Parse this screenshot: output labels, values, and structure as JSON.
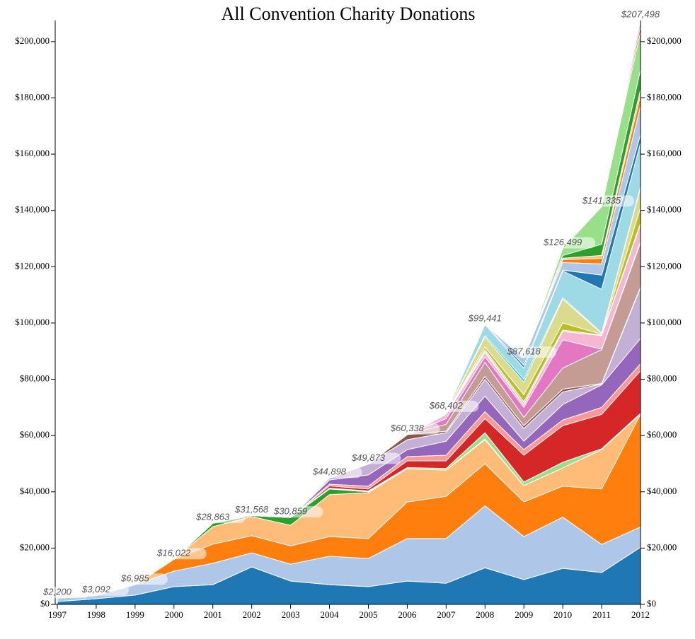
{
  "chart_data": {
    "type": "stacked-area",
    "title": "All Convention Charity Donations",
    "x": [
      1997,
      1998,
      1999,
      2000,
      2001,
      2002,
      2003,
      2004,
      2005,
      2006,
      2007,
      2008,
      2009,
      2010,
      2011,
      2012
    ],
    "xlim": [
      1997,
      2012
    ],
    "xticks": [
      1997,
      1998,
      1999,
      2000,
      2001,
      2002,
      2003,
      2004,
      2005,
      2006,
      2007,
      2008,
      2009,
      2010,
      2011,
      2012
    ],
    "ylim": [
      0,
      207498
    ],
    "yticks": [
      {
        "value": 0,
        "label": "$0"
      },
      {
        "value": 20000,
        "label": "$20,000"
      },
      {
        "value": 40000,
        "label": "$40,000"
      },
      {
        "value": 60000,
        "label": "$60,000"
      },
      {
        "value": 80000,
        "label": "$80,000"
      },
      {
        "value": 100000,
        "label": "$100,000"
      },
      {
        "value": 120000,
        "label": "$120,000"
      },
      {
        "value": 140000,
        "label": "$140,000"
      },
      {
        "value": 160000,
        "label": "$160,000"
      },
      {
        "value": 180000,
        "label": "$180,000"
      },
      {
        "value": 200000,
        "label": "$200,000"
      }
    ],
    "totals": [
      2200,
      3092,
      6985,
      16022,
      28863,
      31568,
      30859,
      44898,
      49873,
      60338,
      68402,
      99441,
      87618,
      126499,
      141335,
      207498
    ],
    "total_labels": [
      "$2,200",
      "$3,092",
      "$6,985",
      "$16,022",
      "$28,863",
      "$31,568",
      "$30,859",
      "$44,898",
      "$49,873",
      "$60,338",
      "$68,402",
      "$99,441",
      "$87,618",
      "$126,499",
      "$141,335",
      "$207,498"
    ],
    "series": [
      {
        "color": "#1f77b4",
        "values": [
          1000,
          2000,
          3300,
          6300,
          7000,
          13300,
          8300,
          7000,
          6300,
          8300,
          7500,
          13000,
          8800,
          12800,
          11300,
          20300
        ]
      },
      {
        "color": "#aec7e8",
        "values": [
          1200,
          1092,
          3685,
          5500,
          7600,
          5000,
          6000,
          10100,
          10000,
          15100,
          15900,
          22000,
          15300,
          18200,
          10000,
          7200
        ]
      },
      {
        "color": "#ff7f0e",
        "values": [
          0,
          0,
          0,
          4222,
          6800,
          6100,
          6500,
          7000,
          7100,
          13000,
          15000,
          15000,
          12300,
          11000,
          19700,
          40000
        ]
      },
      {
        "color": "#ffbb78",
        "values": [
          0,
          0,
          0,
          0,
          6200,
          6800,
          7300,
          14900,
          16300,
          11800,
          9300,
          8500,
          5800,
          6500,
          14000,
          200
        ]
      },
      {
        "color": "#2ca02c",
        "values": [
          0,
          0,
          0,
          0,
          1263,
          368,
          2759,
          2000,
          300,
          0,
          0,
          300,
          0,
          0,
          0,
          0
        ]
      },
      {
        "color": "#98df8a",
        "values": [
          0,
          0,
          0,
          0,
          0,
          0,
          0,
          300,
          300,
          400,
          600,
          2200,
          1300,
          2000,
          300,
          200
        ]
      },
      {
        "color": "#d62728",
        "values": [
          0,
          0,
          0,
          0,
          0,
          0,
          0,
          800,
          700,
          2400,
          2700,
          5000,
          9500,
          13000,
          12200,
          15100
        ]
      },
      {
        "color": "#ff9896",
        "values": [
          0,
          0,
          0,
          0,
          0,
          0,
          0,
          600,
          1000,
          1500,
          2000,
          2500,
          2000,
          2000,
          2500,
          2500
        ]
      },
      {
        "color": "#9467bd",
        "values": [
          0,
          0,
          0,
          0,
          0,
          0,
          0,
          1500,
          4000,
          2500,
          5000,
          5500,
          3000,
          5500,
          8000,
          9000
        ]
      },
      {
        "color": "#c5b0d5",
        "values": [
          0,
          0,
          0,
          0,
          0,
          0,
          0,
          698,
          3873,
          3500,
          3000,
          6000,
          4500,
          4500,
          300,
          18000
        ]
      },
      {
        "color": "#8c564b",
        "values": [
          0,
          0,
          0,
          0,
          0,
          0,
          0,
          0,
          0,
          1838,
          500,
          1000,
          1000,
          1000,
          200,
          300
        ]
      },
      {
        "color": "#c49c94",
        "values": [
          0,
          0,
          0,
          0,
          0,
          0,
          0,
          0,
          0,
          0,
          2500,
          5000,
          3000,
          7500,
          12000,
          15700
        ]
      },
      {
        "color": "#e377c2",
        "values": [
          0,
          0,
          0,
          0,
          0,
          0,
          0,
          0,
          0,
          0,
          2000,
          2000,
          3500,
          10000,
          200,
          500
        ]
      },
      {
        "color": "#f7b6d2",
        "values": [
          0,
          0,
          0,
          0,
          0,
          0,
          0,
          0,
          0,
          0,
          1500,
          1500,
          1000,
          3000,
          4800,
          6000
        ]
      },
      {
        "color": "#7f7f7f",
        "values": [
          0,
          0,
          0,
          0,
          0,
          0,
          0,
          0,
          0,
          0,
          0,
          300,
          0,
          0,
          0,
          0
        ]
      },
      {
        "color": "#c7c7c7",
        "values": [
          0,
          0,
          0,
          0,
          0,
          0,
          0,
          0,
          0,
          0,
          300,
          700,
          1000,
          500,
          200,
          500
        ]
      },
      {
        "color": "#bcbd22",
        "values": [
          0,
          0,
          0,
          0,
          0,
          0,
          0,
          0,
          0,
          0,
          0,
          1000,
          2500,
          2500,
          300,
          5500
        ]
      },
      {
        "color": "#dbdb8d",
        "values": [
          0,
          0,
          0,
          0,
          0,
          0,
          0,
          0,
          0,
          0,
          300,
          3500,
          4500,
          8500,
          300,
          7000
        ]
      },
      {
        "color": "#17becf",
        "values": [
          0,
          0,
          0,
          0,
          0,
          0,
          0,
          0,
          0,
          0,
          0,
          500,
          1000,
          500,
          200,
          500
        ]
      },
      {
        "color": "#9edae5",
        "values": [
          0,
          0,
          0,
          0,
          0,
          0,
          0,
          0,
          0,
          0,
          302,
          3941,
          4000,
          9500,
          15500,
          15500
        ]
      },
      {
        "color": "#1f77b4",
        "values": [
          0,
          0,
          0,
          0,
          0,
          0,
          0,
          0,
          0,
          0,
          0,
          0,
          1000,
          300,
          5000,
          3000
        ]
      },
      {
        "color": "#aec7e8",
        "values": [
          0,
          0,
          0,
          0,
          0,
          0,
          0,
          0,
          0,
          0,
          0,
          0,
          2618,
          2700,
          4000,
          10000
        ]
      },
      {
        "color": "#ff7f0e",
        "values": [
          0,
          0,
          0,
          0,
          0,
          0,
          0,
          0,
          0,
          0,
          0,
          0,
          0,
          1000,
          2000,
          4000
        ]
      },
      {
        "color": "#ffbb78",
        "values": [
          0,
          0,
          0,
          0,
          0,
          0,
          0,
          0,
          0,
          0,
          0,
          0,
          0,
          500,
          1000,
          2000
        ]
      },
      {
        "color": "#2ca02c",
        "values": [
          0,
          0,
          0,
          0,
          0,
          0,
          0,
          0,
          0,
          0,
          0,
          0,
          0,
          1000,
          4000,
          7000
        ]
      },
      {
        "color": "#98df8a",
        "values": [
          0,
          0,
          0,
          0,
          0,
          0,
          0,
          0,
          0,
          0,
          0,
          0,
          0,
          2499,
          13335,
          13500
        ]
      },
      {
        "color": "#d62728",
        "values": [
          0,
          0,
          0,
          0,
          0,
          0,
          0,
          0,
          0,
          0,
          0,
          0,
          0,
          0,
          0,
          2000
        ]
      },
      {
        "color": "#ff9896",
        "values": [
          0,
          0,
          0,
          0,
          0,
          0,
          0,
          0,
          0,
          0,
          0,
          0,
          0,
          0,
          0,
          1998
        ]
      }
    ]
  }
}
